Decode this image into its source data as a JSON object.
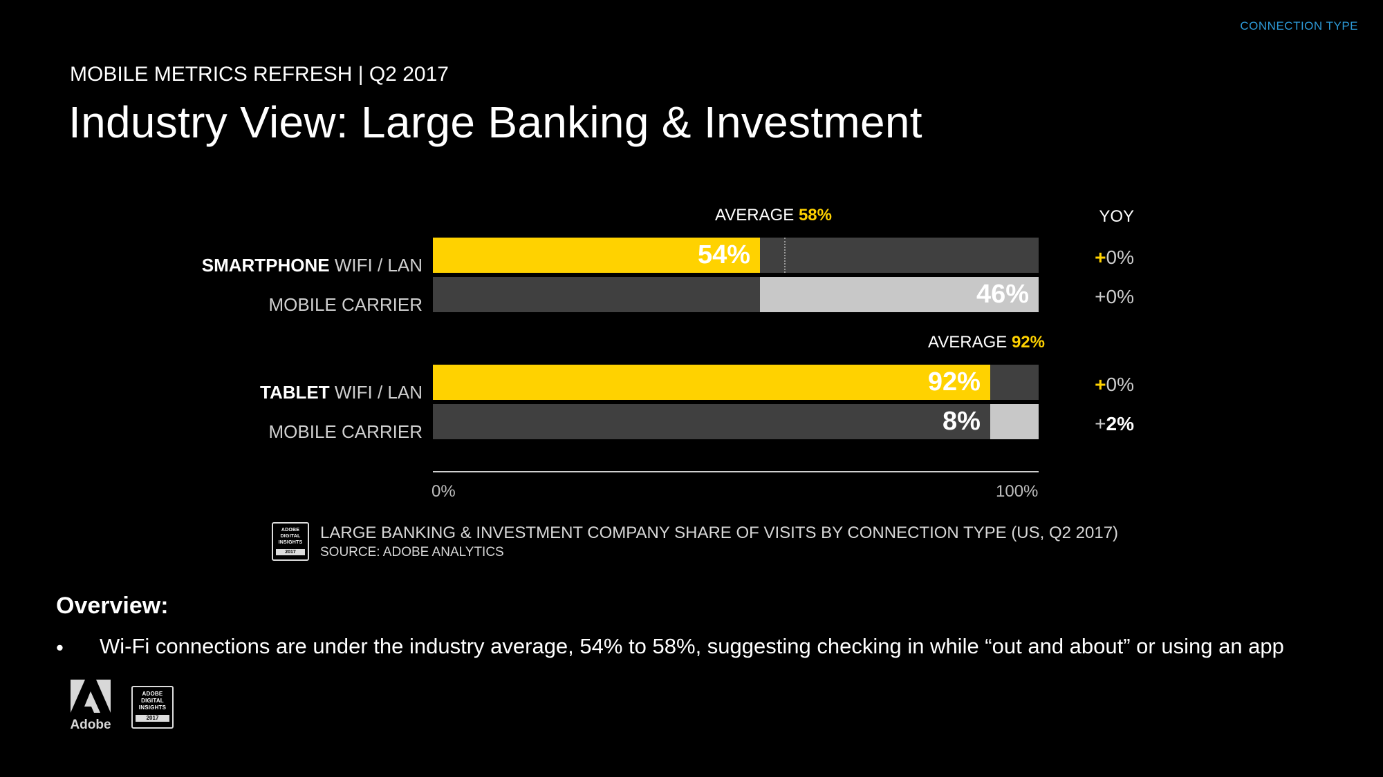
{
  "header": {
    "corner_label": "CONNECTION TYPE",
    "subtitle": "MOBILE METRICS REFRESH | Q2 2017",
    "title": "Industry View: Large Banking & Investment"
  },
  "chart_data": {
    "type": "bar",
    "orientation": "horizontal",
    "stacked": true,
    "xlim": [
      0,
      100
    ],
    "x_ticks": [
      "0%",
      "100%"
    ],
    "yoy_header": "YOY",
    "groups": [
      {
        "device": "SMARTPHONE",
        "average_label": "AVERAGE",
        "average_text": "58%",
        "average_value": 58,
        "rows": [
          {
            "device": "SMARTPHONE",
            "label": "WIFI / LAN",
            "value": 54,
            "value_text": "54%",
            "yoy_sign": "+",
            "yoy_value": "0%",
            "highlight": false
          },
          {
            "device": "",
            "label": "MOBILE CARRIER",
            "value": 46,
            "value_text": "46%",
            "yoy_sign": "+",
            "yoy_value": "0%",
            "highlight": false
          }
        ]
      },
      {
        "device": "TABLET",
        "average_label": "AVERAGE",
        "average_text": "92%",
        "average_value": 92,
        "rows": [
          {
            "device": "TABLET",
            "label": "WIFI / LAN",
            "value": 92,
            "value_text": "92%",
            "yoy_sign": "+",
            "yoy_value": "0%",
            "highlight": false
          },
          {
            "device": "",
            "label": "MOBILE CARRIER",
            "value": 8,
            "value_text": "8%",
            "yoy_sign": "+",
            "yoy_value": "2%",
            "highlight": true
          }
        ]
      }
    ],
    "source_title": "LARGE BANKING & INVESTMENT COMPANY SHARE OF VISITS BY CONNECTION TYPE (US, Q2 2017)",
    "source": "SOURCE: ADOBE ANALYTICS"
  },
  "badge": {
    "line1": "ADOBE",
    "line2": "DIGITAL",
    "line3": "INSIGHTS",
    "year": "2017"
  },
  "overview": {
    "heading": "Overview:",
    "bullet_mark": "•",
    "bullets": [
      "Wi-Fi connections are under the industry average, 54% to 58%, suggesting checking in while “out and about” or using an app"
    ]
  },
  "footer": {
    "adobe_text": "Adobe"
  },
  "colors": {
    "wifi": "#ffd200",
    "carrier": "#c8c8c8",
    "track": "#404040",
    "accent": "#2d9ad8"
  }
}
